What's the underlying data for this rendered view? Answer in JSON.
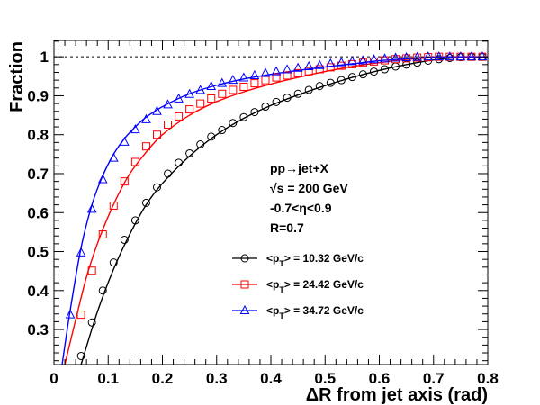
{
  "chart_data": {
    "type": "line",
    "xlabel": "ΔR from jet axis (rad)",
    "ylabel": "Fraction",
    "xlim": [
      0,
      0.8
    ],
    "ylim": [
      0.21,
      1.042
    ],
    "x_ticks": [
      "0",
      "0.1",
      "0.2",
      "0.3",
      "0.4",
      "0.5",
      "0.6",
      "0.7",
      "0.8"
    ],
    "y_ticks": [
      "0.3",
      "0.4",
      "0.5",
      "0.6",
      "0.7",
      "0.8",
      "0.9",
      "1"
    ],
    "reference_line": {
      "y": 1,
      "style": "dashed"
    },
    "annotations": [
      "pp→jet+X",
      "√s = 200 GeV",
      "-0.7<η<0.9",
      "R=0.7"
    ],
    "legend_position": "center-right",
    "series": [
      {
        "name": "<pT> = 10.32 GeV/c",
        "label_parts": [
          "<p",
          "T",
          "> = 10.32 GeV/c"
        ],
        "color": "#000000",
        "marker": "circle",
        "x": [
          0.05,
          0.07,
          0.09,
          0.11,
          0.13,
          0.15,
          0.17,
          0.19,
          0.21,
          0.23,
          0.25,
          0.27,
          0.29,
          0.31,
          0.33,
          0.35,
          0.37,
          0.39,
          0.41,
          0.43,
          0.45,
          0.47,
          0.49,
          0.51,
          0.53,
          0.55,
          0.57,
          0.59,
          0.61,
          0.63,
          0.65,
          0.67,
          0.69,
          0.71,
          0.73,
          0.75,
          0.77,
          0.79
        ],
        "y": [
          0.232,
          0.318,
          0.4,
          0.472,
          0.53,
          0.58,
          0.625,
          0.665,
          0.7,
          0.728,
          0.752,
          0.775,
          0.795,
          0.812,
          0.83,
          0.845,
          0.858,
          0.872,
          0.884,
          0.895,
          0.905,
          0.915,
          0.925,
          0.933,
          0.94,
          0.948,
          0.955,
          0.962,
          0.968,
          0.975,
          0.98,
          0.985,
          0.99,
          0.994,
          0.997,
          0.999,
          1.0,
          1.0
        ],
        "fit_x": [
          0.05,
          0.08,
          0.11,
          0.14,
          0.17,
          0.2,
          0.25,
          0.3,
          0.35,
          0.4,
          0.45,
          0.5,
          0.55,
          0.6,
          0.65,
          0.7,
          0.75,
          0.8
        ],
        "fit_y": [
          0.21,
          0.345,
          0.455,
          0.545,
          0.62,
          0.675,
          0.745,
          0.8,
          0.842,
          0.875,
          0.902,
          0.926,
          0.947,
          0.965,
          0.98,
          0.992,
          0.998,
          1.0
        ]
      },
      {
        "name": "<pT> = 24.42 GeV/c",
        "label_parts": [
          "<p",
          "T",
          "> = 24.42 GeV/c"
        ],
        "color": "#ff0000",
        "marker": "square",
        "x": [
          0.05,
          0.07,
          0.09,
          0.11,
          0.13,
          0.15,
          0.17,
          0.19,
          0.21,
          0.23,
          0.25,
          0.27,
          0.29,
          0.31,
          0.33,
          0.35,
          0.37,
          0.39,
          0.41,
          0.43,
          0.45,
          0.47,
          0.49,
          0.51,
          0.53,
          0.55,
          0.57,
          0.59,
          0.61,
          0.63,
          0.65,
          0.67,
          0.69,
          0.71,
          0.73,
          0.75,
          0.77,
          0.79
        ],
        "y": [
          0.338,
          0.451,
          0.544,
          0.618,
          0.68,
          0.73,
          0.77,
          0.8,
          0.826,
          0.847,
          0.865,
          0.88,
          0.893,
          0.905,
          0.915,
          0.923,
          0.932,
          0.94,
          0.947,
          0.952,
          0.958,
          0.963,
          0.968,
          0.973,
          0.977,
          0.981,
          0.985,
          0.988,
          0.991,
          0.994,
          0.996,
          0.998,
          0.999,
          1.0,
          1.0,
          1.0,
          1.0,
          1.0
        ],
        "fit_x": [
          0.02,
          0.04,
          0.06,
          0.08,
          0.1,
          0.12,
          0.14,
          0.17,
          0.2,
          0.25,
          0.3,
          0.35,
          0.4,
          0.45,
          0.5,
          0.55,
          0.6,
          0.65,
          0.7,
          0.75,
          0.8
        ],
        "fit_y": [
          0.21,
          0.325,
          0.435,
          0.52,
          0.59,
          0.65,
          0.7,
          0.755,
          0.8,
          0.85,
          0.885,
          0.91,
          0.93,
          0.947,
          0.962,
          0.975,
          0.985,
          0.993,
          0.998,
          1.0,
          1.0
        ]
      },
      {
        "name": "<pT> = 34.72 GeV/c",
        "label_parts": [
          "<p",
          "T",
          "> = 34.72 GeV/c"
        ],
        "color": "#0000ff",
        "marker": "triangle",
        "x": [
          0.03,
          0.05,
          0.07,
          0.09,
          0.11,
          0.13,
          0.15,
          0.17,
          0.19,
          0.21,
          0.23,
          0.25,
          0.27,
          0.29,
          0.31,
          0.33,
          0.35,
          0.37,
          0.39,
          0.41,
          0.43,
          0.45,
          0.47,
          0.49,
          0.51,
          0.53,
          0.55,
          0.57,
          0.59,
          0.61,
          0.63,
          0.65,
          0.67,
          0.69,
          0.71,
          0.73,
          0.75,
          0.77,
          0.79
        ],
        "y": [
          0.338,
          0.497,
          0.609,
          0.685,
          0.74,
          0.781,
          0.813,
          0.839,
          0.86,
          0.877,
          0.892,
          0.904,
          0.914,
          0.924,
          0.932,
          0.94,
          0.946,
          0.952,
          0.958,
          0.962,
          0.967,
          0.971,
          0.975,
          0.978,
          0.982,
          0.985,
          0.988,
          0.99,
          0.993,
          0.995,
          0.997,
          0.998,
          0.999,
          1.0,
          1.0,
          1.0,
          1.0,
          1.0,
          1.0
        ],
        "fit_x": [
          0.015,
          0.03,
          0.05,
          0.07,
          0.09,
          0.11,
          0.13,
          0.15,
          0.17,
          0.2,
          0.25,
          0.3,
          0.35,
          0.4,
          0.45,
          0.5,
          0.55,
          0.6,
          0.65,
          0.7,
          0.75,
          0.8
        ],
        "fit_y": [
          0.21,
          0.35,
          0.51,
          0.62,
          0.695,
          0.75,
          0.79,
          0.82,
          0.845,
          0.872,
          0.905,
          0.927,
          0.943,
          0.955,
          0.965,
          0.974,
          0.982,
          0.99,
          0.995,
          0.999,
          1.0,
          1.0
        ]
      }
    ]
  }
}
